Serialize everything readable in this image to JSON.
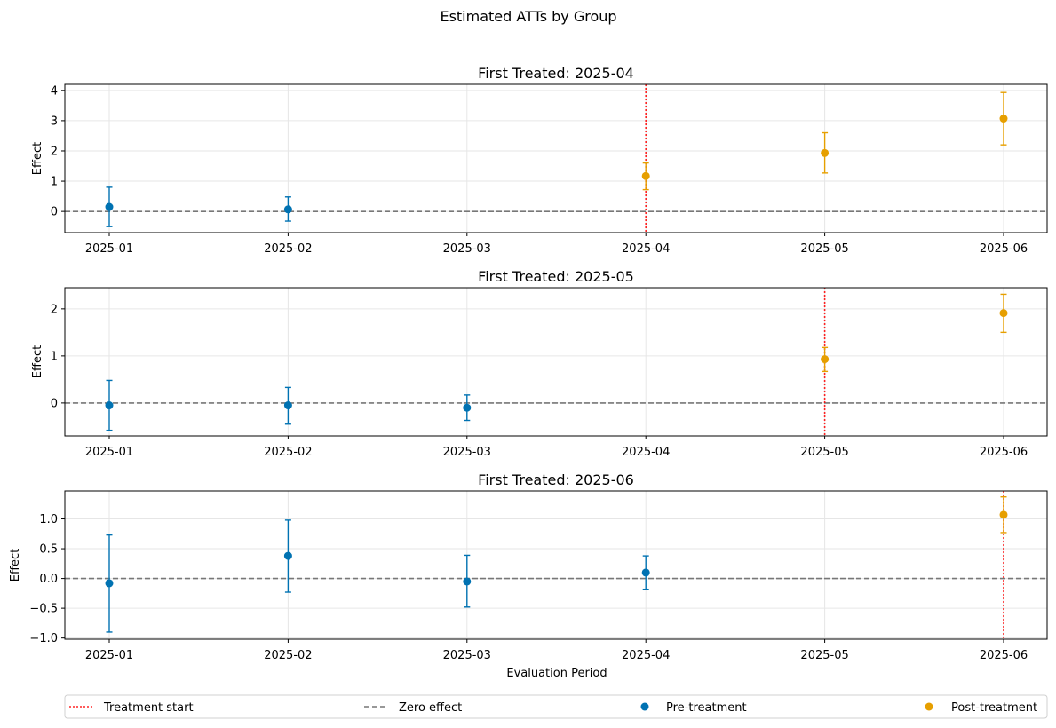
{
  "figure": {
    "title": "Estimated ATTs by Group",
    "xlabel": "Evaluation Period"
  },
  "colors": {
    "pre": "#0072b2",
    "post": "#e69f00",
    "treatment_line": "#ff0000",
    "zero_line": "#777777",
    "grid": "#e6e6e6"
  },
  "legend": {
    "placement": "bottom",
    "entries": [
      {
        "label": "Treatment start",
        "marker": "dotted-line"
      },
      {
        "label": "Zero effect",
        "marker": "dashed-line"
      },
      {
        "label": "Pre-treatment",
        "marker": "dot-pre"
      },
      {
        "label": "Post-treatment",
        "marker": "dot-post"
      }
    ]
  },
  "chart_data": [
    {
      "type": "scatter",
      "title": "First Treated: 2025-04",
      "ylabel": "Effect",
      "categories": [
        "2025-01",
        "2025-02",
        "2025-03",
        "2025-04",
        "2025-05",
        "2025-06"
      ],
      "ylim": [
        -0.7,
        4.2
      ],
      "yticks": [
        0,
        1,
        2,
        3,
        4
      ],
      "ytick_labels": [
        "0",
        "1",
        "2",
        "3",
        "4"
      ],
      "treatment_start": "2025-04",
      "grid": true,
      "points": [
        {
          "x": "2025-01",
          "y": 0.15,
          "lo": -0.5,
          "hi": 0.8,
          "group": "pre"
        },
        {
          "x": "2025-02",
          "y": 0.07,
          "lo": -0.32,
          "hi": 0.48,
          "group": "pre"
        },
        {
          "x": "2025-04",
          "y": 1.17,
          "lo": 0.72,
          "hi": 1.6,
          "group": "post"
        },
        {
          "x": "2025-05",
          "y": 1.93,
          "lo": 1.27,
          "hi": 2.6,
          "group": "post"
        },
        {
          "x": "2025-06",
          "y": 3.07,
          "lo": 2.2,
          "hi": 3.93,
          "group": "post"
        }
      ]
    },
    {
      "type": "scatter",
      "title": "First Treated: 2025-05",
      "ylabel": "Effect",
      "categories": [
        "2025-01",
        "2025-02",
        "2025-03",
        "2025-04",
        "2025-05",
        "2025-06"
      ],
      "ylim": [
        -0.7,
        2.45
      ],
      "yticks": [
        0,
        1,
        2
      ],
      "ytick_labels": [
        "0",
        "1",
        "2"
      ],
      "treatment_start": "2025-05",
      "grid": true,
      "points": [
        {
          "x": "2025-01",
          "y": -0.05,
          "lo": -0.58,
          "hi": 0.48,
          "group": "pre"
        },
        {
          "x": "2025-02",
          "y": -0.05,
          "lo": -0.45,
          "hi": 0.33,
          "group": "pre"
        },
        {
          "x": "2025-03",
          "y": -0.1,
          "lo": -0.37,
          "hi": 0.17,
          "group": "pre"
        },
        {
          "x": "2025-05",
          "y": 0.93,
          "lo": 0.67,
          "hi": 1.18,
          "group": "post"
        },
        {
          "x": "2025-06",
          "y": 1.91,
          "lo": 1.5,
          "hi": 2.31,
          "group": "post"
        }
      ]
    },
    {
      "type": "scatter",
      "title": "First Treated: 2025-06",
      "ylabel": "Effect",
      "categories": [
        "2025-01",
        "2025-02",
        "2025-03",
        "2025-04",
        "2025-05",
        "2025-06"
      ],
      "ylim": [
        -1.02,
        1.47
      ],
      "yticks": [
        -1.0,
        -0.5,
        0.0,
        0.5,
        1.0
      ],
      "ytick_labels": [
        "−1.0",
        "−0.5",
        "0.0",
        "0.5",
        "1.0"
      ],
      "treatment_start": "2025-06",
      "grid": true,
      "points": [
        {
          "x": "2025-01",
          "y": -0.08,
          "lo": -0.9,
          "hi": 0.73,
          "group": "pre"
        },
        {
          "x": "2025-02",
          "y": 0.38,
          "lo": -0.23,
          "hi": 0.98,
          "group": "pre"
        },
        {
          "x": "2025-03",
          "y": -0.05,
          "lo": -0.48,
          "hi": 0.39,
          "group": "pre"
        },
        {
          "x": "2025-04",
          "y": 0.1,
          "lo": -0.18,
          "hi": 0.38,
          "group": "pre"
        },
        {
          "x": "2025-06",
          "y": 1.07,
          "lo": 0.77,
          "hi": 1.37,
          "group": "post"
        }
      ]
    }
  ]
}
